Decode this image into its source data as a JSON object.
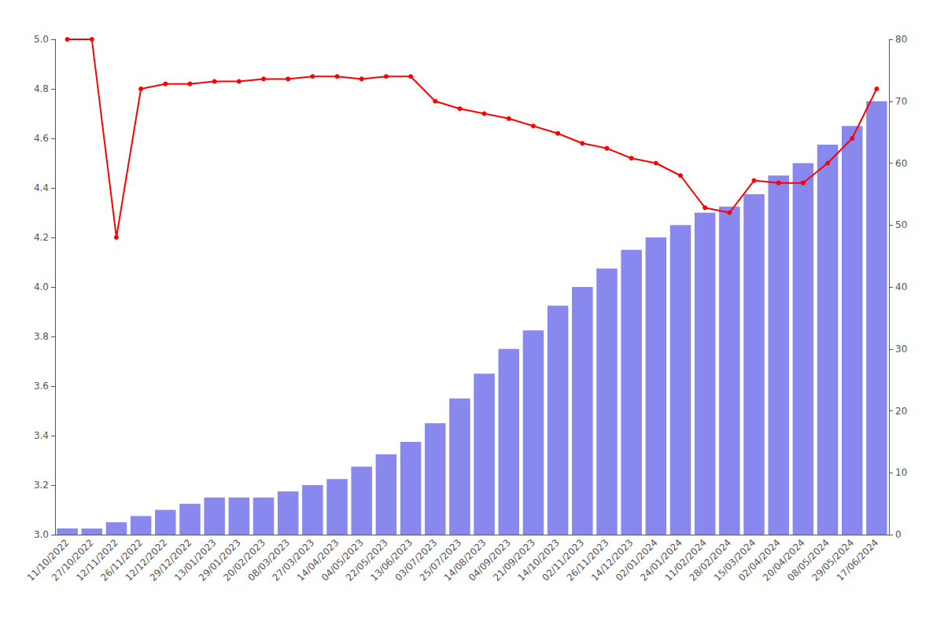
{
  "chart_data": {
    "type": "bar",
    "categories": [
      "11/10/2022",
      "27/10/2022",
      "12/11/2022",
      "26/11/2022",
      "12/12/2022",
      "29/12/2022",
      "13/01/2023",
      "29/01/2023",
      "20/02/2023",
      "08/03/2023",
      "27/03/2023",
      "14/04/2023",
      "04/05/2023",
      "22/05/2023",
      "13/06/2023",
      "03/07/2023",
      "25/07/2023",
      "14/08/2023",
      "04/09/2023",
      "21/09/2023",
      "14/10/2023",
      "02/11/2023",
      "26/11/2023",
      "14/12/2023",
      "02/01/2024",
      "24/01/2024",
      "11/02/2024",
      "28/02/2024",
      "15/03/2024",
      "02/04/2024",
      "20/04/2024",
      "08/05/2024",
      "29/05/2024",
      "17/06/2024"
    ],
    "series": [
      {
        "type": "bar",
        "axis": "y2",
        "color": "#8888ee",
        "values": [
          1,
          1,
          2,
          3,
          4,
          5,
          6,
          6,
          6,
          7,
          8,
          9,
          11,
          13,
          15,
          18,
          22,
          26,
          30,
          33,
          37,
          40,
          43,
          46,
          48,
          50,
          52,
          53,
          55,
          58,
          60,
          63,
          66,
          70
        ]
      },
      {
        "type": "line",
        "color": "#ff0000",
        "marker": "circle",
        "values": [
          5.0,
          5.0,
          4.2,
          4.8,
          4.82,
          4.82,
          4.83,
          4.83,
          4.84,
          4.84,
          4.85,
          4.85,
          4.84,
          4.85,
          4.85,
          4.75,
          4.72,
          4.7,
          4.68,
          4.65,
          4.62,
          4.58,
          4.56,
          4.52,
          4.5,
          4.45,
          4.32,
          4.3,
          4.43,
          4.42,
          4.42,
          4.5,
          4.6,
          4.8
        ]
      }
    ],
    "ylim": [
      3.0,
      5.0
    ],
    "yticks": [
      {
        "value": 3.0,
        "label": "3.0"
      },
      3.2,
      3.4,
      3.6,
      3.8,
      {
        "value": 4.0,
        "label": "4.0"
      },
      4.2,
      4.4,
      4.6,
      4.8,
      {
        "value": 5.0,
        "label": "5.0"
      }
    ],
    "y2lim": [
      0,
      80
    ],
    "y2ticks": [
      0,
      10,
      20,
      30,
      40,
      50,
      60,
      70,
      80
    ],
    "grid": false
  }
}
